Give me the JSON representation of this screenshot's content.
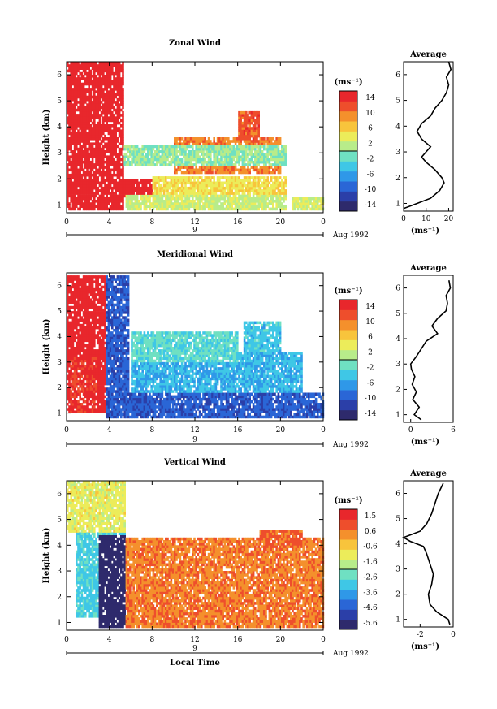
{
  "chart_data": [
    {
      "type": "heatmap",
      "title": "Zonal Wind",
      "ylabel": "Height (km)",
      "xticks": [
        "0",
        "4",
        "8",
        "12",
        "16",
        "20",
        "0"
      ],
      "yticks": [
        "1",
        "2",
        "3",
        "4",
        "5",
        "6"
      ],
      "xlim": [
        0,
        24
      ],
      "ylim": [
        0.7,
        6.5
      ],
      "date_labels": [
        "9",
        "Aug 1992"
      ],
      "colorbar": {
        "unit": "(ms⁻¹)",
        "ticks": [
          "14",
          "10",
          "6",
          "2",
          "-2",
          "-6",
          "-10",
          "-14"
        ],
        "range": [
          -16,
          16
        ]
      },
      "average": {
        "title": "Average",
        "xlabel": "(ms⁻¹)",
        "xticks": [
          "0",
          "10",
          "20"
        ],
        "xlim": [
          0,
          22
        ],
        "yticks": [
          "1",
          "2",
          "3",
          "4",
          "5",
          "6"
        ],
        "profile": [
          [
            0.8,
            0
          ],
          [
            1.0,
            6
          ],
          [
            1.2,
            12
          ],
          [
            1.5,
            16
          ],
          [
            1.8,
            18
          ],
          [
            2.0,
            17
          ],
          [
            2.3,
            14
          ],
          [
            2.6,
            10
          ],
          [
            2.8,
            8
          ],
          [
            3.0,
            10
          ],
          [
            3.2,
            12
          ],
          [
            3.5,
            8
          ],
          [
            3.8,
            6
          ],
          [
            4.1,
            8
          ],
          [
            4.4,
            12
          ],
          [
            4.7,
            14
          ],
          [
            5.0,
            17
          ],
          [
            5.3,
            19
          ],
          [
            5.6,
            20
          ],
          [
            5.9,
            19
          ],
          [
            6.2,
            21
          ],
          [
            6.5,
            20
          ]
        ]
      },
      "field": {
        "regions": [
          [
            0,
            5.3,
            0.8,
            6.4,
            16
          ],
          [
            0.2,
            5.2,
            3.6,
            6.3,
            16
          ],
          [
            1.5,
            3.2,
            0.8,
            2.8,
            16
          ],
          [
            5.2,
            8,
            1.3,
            2.0,
            16
          ],
          [
            5.5,
            20.5,
            0.8,
            1.4,
            2
          ],
          [
            8,
            20.5,
            1.4,
            2.1,
            5
          ],
          [
            10,
            20,
            2.2,
            3.6,
            10
          ],
          [
            16,
            18,
            3.5,
            4.6,
            12
          ],
          [
            5.3,
            20.5,
            2.5,
            3.3,
            0
          ],
          [
            21,
            24,
            0.8,
            1.3,
            3
          ]
        ]
      }
    },
    {
      "type": "heatmap",
      "title": "Meridional Wind",
      "ylabel": "Height (km)",
      "xticks": [
        "0",
        "4",
        "8",
        "12",
        "16",
        "20",
        "0"
      ],
      "yticks": [
        "1",
        "2",
        "3",
        "4",
        "5",
        "6"
      ],
      "xlim": [
        0,
        24
      ],
      "ylim": [
        0.7,
        6.5
      ],
      "date_labels": [
        "9",
        "Aug 1992"
      ],
      "colorbar": {
        "unit": "(ms⁻¹)",
        "ticks": [
          "14",
          "10",
          "6",
          "2",
          "-2",
          "-6",
          "-10",
          "-14"
        ],
        "range": [
          -16,
          16
        ]
      },
      "average": {
        "title": "Average",
        "xlabel": "(ms⁻¹)",
        "xticks": [
          "0",
          "6"
        ],
        "xlim": [
          -1,
          6
        ],
        "yticks": [
          "1",
          "2",
          "3",
          "4",
          "5",
          "6"
        ],
        "profile": [
          [
            0.8,
            1.5
          ],
          [
            1.0,
            0.5
          ],
          [
            1.3,
            1.2
          ],
          [
            1.6,
            0.3
          ],
          [
            1.9,
            0.8
          ],
          [
            2.2,
            0.2
          ],
          [
            2.5,
            0.6
          ],
          [
            2.8,
            0.1
          ],
          [
            3.0,
            0
          ],
          [
            3.3,
            0.8
          ],
          [
            3.6,
            1.5
          ],
          [
            3.9,
            2.2
          ],
          [
            4.2,
            3.8
          ],
          [
            4.5,
            3.0
          ],
          [
            4.8,
            3.8
          ],
          [
            5.1,
            5.0
          ],
          [
            5.4,
            5.2
          ],
          [
            5.7,
            5.0
          ],
          [
            6.0,
            5.6
          ],
          [
            6.3,
            5.4
          ]
        ]
      },
      "field": {
        "regions": [
          [
            0,
            3.8,
            1.0,
            6.3,
            16
          ],
          [
            0.3,
            2.8,
            1.0,
            3.2,
            14
          ],
          [
            3.6,
            5.8,
            0.8,
            6.3,
            -10
          ],
          [
            5.5,
            24,
            0.8,
            1.8,
            -10
          ],
          [
            6,
            22,
            1.8,
            3.4,
            -5
          ],
          [
            16.5,
            20,
            3.4,
            4.6,
            -4
          ],
          [
            6,
            16,
            3.0,
            4.2,
            -2
          ]
        ]
      }
    },
    {
      "type": "heatmap",
      "title": "Vertical Wind",
      "ylabel": "Height (km)",
      "xlabel": "Local Time",
      "xticks": [
        "0",
        "4",
        "8",
        "12",
        "16",
        "20",
        "0"
      ],
      "yticks": [
        "1",
        "2",
        "3",
        "4",
        "5",
        "6"
      ],
      "xlim": [
        0,
        24
      ],
      "ylim": [
        0.7,
        6.5
      ],
      "date_labels": [
        "9",
        "Aug 1992"
      ],
      "colorbar": {
        "unit": "(ms⁻¹)",
        "ticks": [
          "1.5",
          "0.6",
          "-0.6",
          "-1.6",
          "-2.6",
          "-3.6",
          "-4.6",
          "-5.6"
        ],
        "range": [
          -6.2,
          1.9
        ]
      },
      "average": {
        "title": "Average",
        "xlabel": "(ms⁻¹)",
        "xticks": [
          "-2",
          "0"
        ],
        "xlim": [
          -3,
          0
        ],
        "yticks": [
          "1",
          "2",
          "3",
          "4",
          "5",
          "6"
        ],
        "profile": [
          [
            0.8,
            -0.2
          ],
          [
            1.0,
            -0.3
          ],
          [
            1.3,
            -1.0
          ],
          [
            1.6,
            -1.4
          ],
          [
            2.0,
            -1.5
          ],
          [
            2.4,
            -1.3
          ],
          [
            2.8,
            -1.2
          ],
          [
            3.2,
            -1.4
          ],
          [
            3.6,
            -1.6
          ],
          [
            3.9,
            -1.8
          ],
          [
            4.1,
            -2.6
          ],
          [
            4.25,
            -3.0
          ],
          [
            4.5,
            -2.0
          ],
          [
            4.8,
            -1.6
          ],
          [
            5.2,
            -1.3
          ],
          [
            5.6,
            -1.1
          ],
          [
            6.0,
            -0.9
          ],
          [
            6.4,
            -0.6
          ]
        ]
      },
      "field": {
        "regions": [
          [
            0,
            5.5,
            4.5,
            6.4,
            -1.2
          ],
          [
            0.7,
            5.5,
            1.2,
            4.5,
            -3.0
          ],
          [
            3.0,
            5.5,
            0.8,
            4.4,
            -6.2
          ],
          [
            5.5,
            24,
            0.8,
            4.3,
            0.4
          ],
          [
            18,
            22,
            3.8,
            4.6,
            0.7
          ]
        ]
      }
    }
  ],
  "colors": {
    "cmap": [
      "#2e2a6c",
      "#2b3fa8",
      "#2a66d6",
      "#2f98e8",
      "#3fc7e6",
      "#6fe0c2",
      "#b8ec8a",
      "#ecec5a",
      "#f8c43c",
      "#f4902c",
      "#ee4e2c",
      "#e8272c"
    ]
  },
  "footer": {
    "xlabel": "Local Time"
  }
}
